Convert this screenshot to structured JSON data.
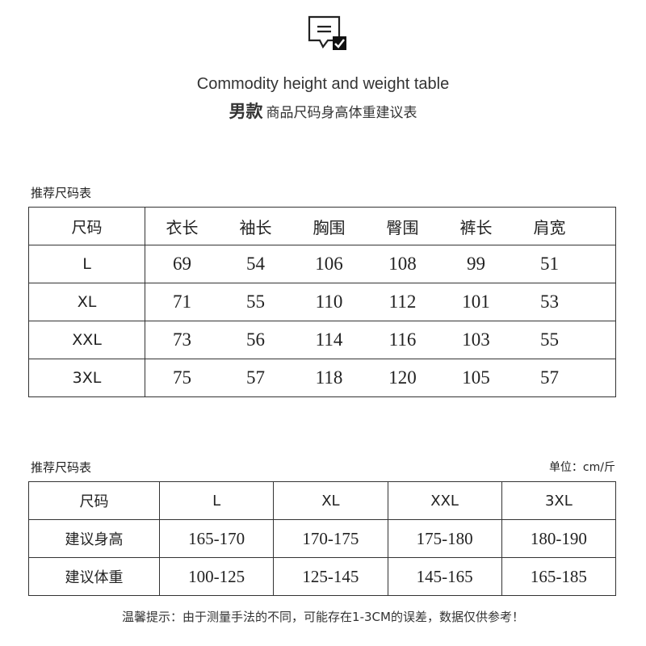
{
  "header": {
    "icon": "message-check-icon",
    "title_en": "Commodity height and weight table",
    "title_cn_bold": "男款",
    "title_cn": "商品尺码身高体重建议表"
  },
  "table1": {
    "caption": "推荐尺码表",
    "headers": [
      "尺码",
      "衣长",
      "袖长",
      "胸围",
      "臀围",
      "裤长",
      "肩宽"
    ],
    "rows": [
      [
        "L",
        "69",
        "54",
        "106",
        "108",
        "99",
        "51"
      ],
      [
        "XL",
        "71",
        "55",
        "110",
        "112",
        "101",
        "53"
      ],
      [
        "XXL",
        "73",
        "56",
        "114",
        "116",
        "103",
        "55"
      ],
      [
        "3XL",
        "75",
        "57",
        "118",
        "120",
        "105",
        "57"
      ]
    ]
  },
  "table2": {
    "caption": "推荐尺码表",
    "unit": "单位：cm/斤",
    "headers": [
      "尺码",
      "L",
      "XL",
      "XXL",
      "3XL"
    ],
    "rows": [
      [
        "建议身高",
        "165-170",
        "170-175",
        "175-180",
        "180-190"
      ],
      [
        "建议体重",
        "100-125",
        "125-145",
        "145-165",
        "165-185"
      ]
    ]
  },
  "note": "温馨提示：由于测量手法的不同，可能存在1-3CM的误差，数据仅供参考！"
}
